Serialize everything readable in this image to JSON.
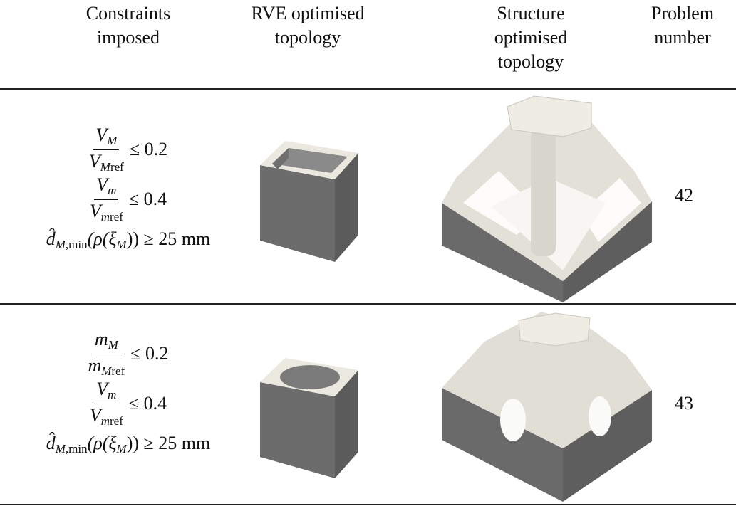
{
  "table": {
    "header": [
      [
        "Constraints",
        "imposed"
      ],
      [
        "RVE optimised",
        "topology"
      ],
      [
        "Structure",
        "optimised",
        "topology"
      ],
      [
        "Problem",
        "number"
      ]
    ],
    "rows": [
      {
        "constraints": [
          {
            "num": "V",
            "num_sub": "M",
            "den": "V",
            "den_sub": "M",
            "den_sub2": "ref",
            "rel": "≤ 0.2"
          },
          {
            "num": "V",
            "num_sub": "m",
            "den": "V",
            "den_sub": "m",
            "den_sub2": "ref",
            "rel": "≤ 0.4"
          },
          {
            "lead": "d̂",
            "lead_sub": "M,min",
            "mid": "(ρ(ξ",
            "mid_sub": "M",
            "tail": ")) ≥ 25 mm"
          }
        ],
        "problem": "42"
      },
      {
        "constraints": [
          {
            "num": "m",
            "num_sub": "M",
            "den": "m",
            "den_sub": "M",
            "den_sub2": "ref",
            "rel": "≤ 0.2"
          },
          {
            "num": "V",
            "num_sub": "m",
            "den": "V",
            "den_sub": "m",
            "den_sub2": "ref",
            "rel": "≤ 0.4"
          },
          {
            "lead": "d̂",
            "lead_sub": "M,min",
            "mid": "(ρ(ξ",
            "mid_sub": "M",
            "tail": ")) ≥ 25 mm"
          }
        ],
        "problem": "43"
      }
    ]
  }
}
